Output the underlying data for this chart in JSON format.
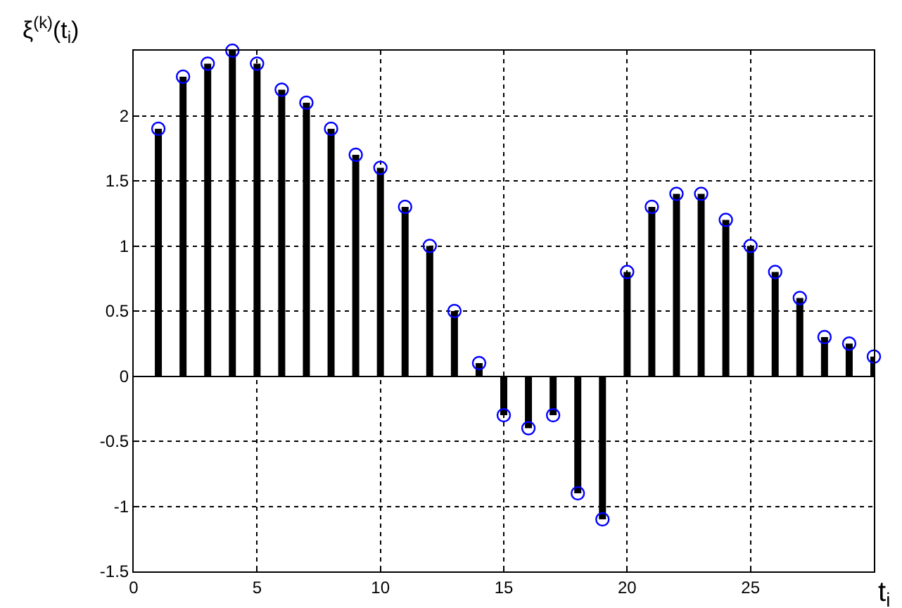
{
  "chart_data": {
    "type": "lollipop",
    "xlabel": "t$_{i}$",
    "ylabel": "ξ$^{(k)}$(t$_{i}$)",
    "x": [
      1,
      2,
      3,
      4,
      5,
      6,
      7,
      8,
      9,
      10,
      11,
      12,
      13,
      14,
      15,
      16,
      17,
      18,
      19,
      20,
      21,
      22,
      23,
      24,
      25,
      26,
      27,
      28,
      29,
      30
    ],
    "series": [
      {
        "color": "#0000ff",
        "values": [
          1.9,
          2.3,
          2.4,
          2.5,
          2.4,
          2.2,
          2.1,
          1.9,
          1.7,
          1.6,
          1.3,
          1.0,
          0.5,
          0.1,
          -0.3,
          -0.4,
          -0.3,
          -0.9,
          -1.1,
          0.8,
          1.3,
          1.4,
          1.4,
          1.2,
          1.0,
          0.8,
          0.6,
          0.3,
          0.25,
          0.15
        ]
      }
    ],
    "xlim": [
      0,
      30
    ],
    "xticks": [
      0,
      5,
      10,
      15,
      20,
      25
    ],
    "ylim": [
      -1.5,
      2.5
    ],
    "yticks": [
      -1.5,
      -1,
      -0.5,
      0,
      0.5,
      1,
      1.5,
      2
    ],
    "grid": true,
    "marker": "circle"
  }
}
